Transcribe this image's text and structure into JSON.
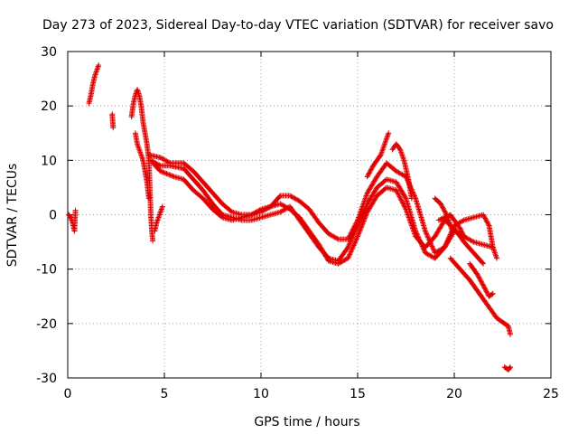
{
  "chart_data": {
    "type": "scatter",
    "title": "Day 273 of 2023, Sidereal Day-to-day VTEC variation (SDTVAR) for receiver savo",
    "xlabel": "GPS time / hours",
    "ylabel": "SDTVAR / TECUs",
    "xlim": [
      0,
      25
    ],
    "ylim": [
      -30,
      30
    ],
    "x_ticks": [
      "0",
      "5",
      "10",
      "15",
      "20",
      "25"
    ],
    "y_ticks": [
      "30",
      "20",
      "10",
      "0",
      "-10",
      "-20",
      "-30"
    ],
    "x_tick_values": [
      0,
      5,
      10,
      15,
      20,
      25
    ],
    "y_tick_values": [
      30,
      20,
      10,
      0,
      -10,
      -20,
      -30
    ],
    "grid": true,
    "marker": "+",
    "color": "#e00000",
    "series": [
      {
        "name": "t1",
        "points": [
          [
            0.05,
            0
          ],
          [
            0.15,
            -0.5
          ],
          [
            0.25,
            -1.5
          ],
          [
            0.35,
            -3
          ],
          [
            0.4,
            0.8
          ]
        ]
      },
      {
        "name": "t2",
        "points": [
          [
            1.1,
            20.5
          ],
          [
            1.2,
            22
          ],
          [
            1.3,
            24
          ],
          [
            1.4,
            25.5
          ],
          [
            1.5,
            26.5
          ],
          [
            1.6,
            27.5
          ]
        ]
      },
      {
        "name": "t3",
        "points": [
          [
            2.3,
            18.5
          ],
          [
            2.35,
            16
          ]
        ]
      },
      {
        "name": "t4",
        "points": [
          [
            3.3,
            18
          ],
          [
            3.4,
            20.5
          ],
          [
            3.5,
            22
          ],
          [
            3.6,
            23
          ],
          [
            3.7,
            22
          ],
          [
            3.8,
            20
          ],
          [
            3.9,
            17
          ],
          [
            4.0,
            15
          ],
          [
            4.1,
            13
          ],
          [
            4.2,
            10
          ],
          [
            4.25,
            5
          ],
          [
            4.3,
            0
          ],
          [
            4.35,
            -3
          ],
          [
            4.4,
            -4.8
          ]
        ]
      },
      {
        "name": "t5",
        "points": [
          [
            3.5,
            15
          ],
          [
            3.6,
            13
          ],
          [
            3.7,
            12
          ],
          [
            3.8,
            11
          ],
          [
            3.9,
            10
          ],
          [
            4.0,
            8
          ],
          [
            4.1,
            6
          ],
          [
            4.2,
            3
          ]
        ]
      },
      {
        "name": "t6",
        "points": [
          [
            4.5,
            -3
          ],
          [
            4.6,
            -1.5
          ],
          [
            4.7,
            -0.5
          ],
          [
            4.8,
            0.5
          ],
          [
            4.9,
            1.5
          ]
        ]
      },
      {
        "name": "t7",
        "points": [
          [
            4.2,
            11
          ],
          [
            4.8,
            10.5
          ],
          [
            5.3,
            9.5
          ],
          [
            6,
            9.5
          ],
          [
            6.5,
            8
          ],
          [
            7,
            6
          ],
          [
            7.5,
            4
          ],
          [
            8,
            2
          ],
          [
            8.5,
            0.5
          ],
          [
            9,
            0
          ],
          [
            9.5,
            0
          ],
          [
            10,
            0.5
          ],
          [
            10.5,
            1.5
          ],
          [
            11,
            3.5
          ],
          [
            11.5,
            3.5
          ],
          [
            12,
            2.5
          ],
          [
            12.5,
            1
          ],
          [
            13,
            -1.5
          ],
          [
            13.5,
            -3.5
          ],
          [
            14,
            -4.5
          ],
          [
            14.5,
            -4.5
          ],
          [
            15,
            -1
          ],
          [
            15.5,
            4
          ],
          [
            16,
            7
          ],
          [
            16.5,
            9.5
          ],
          [
            17,
            8
          ],
          [
            17.5,
            7
          ],
          [
            18,
            3
          ],
          [
            18.5,
            -3
          ],
          [
            19,
            -7
          ],
          [
            19.5,
            -6
          ],
          [
            20,
            -2
          ],
          [
            20.5,
            -1
          ],
          [
            21,
            -0.5
          ],
          [
            21.5,
            0
          ],
          [
            21.8,
            -2
          ],
          [
            22,
            -6
          ],
          [
            22.2,
            -8
          ]
        ]
      },
      {
        "name": "t8",
        "points": [
          [
            4.3,
            10
          ],
          [
            4.8,
            9
          ],
          [
            5.3,
            9
          ],
          [
            6,
            8.5
          ],
          [
            6.5,
            6.5
          ],
          [
            7,
            4.5
          ],
          [
            7.5,
            2
          ],
          [
            8,
            0
          ],
          [
            8.5,
            -0.5
          ],
          [
            9,
            -1
          ],
          [
            9.5,
            -1
          ],
          [
            10,
            -0.5
          ],
          [
            10.5,
            0
          ],
          [
            11,
            0.5
          ],
          [
            11.5,
            1.5
          ],
          [
            12,
            -1
          ],
          [
            12.5,
            -3.5
          ],
          [
            13,
            -6
          ],
          [
            13.5,
            -8
          ],
          [
            14,
            -8.5
          ],
          [
            14.5,
            -6
          ],
          [
            15,
            -2
          ],
          [
            15.5,
            2
          ],
          [
            16,
            5
          ],
          [
            16.5,
            6.5
          ],
          [
            17,
            6
          ],
          [
            17.5,
            3
          ],
          [
            18,
            -3
          ],
          [
            18.5,
            -7
          ],
          [
            19,
            -8
          ],
          [
            19.5,
            -6
          ],
          [
            20,
            -3
          ],
          [
            20.5,
            -4
          ],
          [
            21,
            -5
          ],
          [
            21.5,
            -5.5
          ],
          [
            22,
            -6
          ]
        ]
      },
      {
        "name": "t9",
        "points": [
          [
            4.4,
            9.5
          ],
          [
            4.8,
            8
          ],
          [
            5.5,
            7
          ],
          [
            6,
            6.5
          ],
          [
            6.5,
            4.5
          ],
          [
            7,
            3
          ],
          [
            7.5,
            1
          ],
          [
            8,
            -0.5
          ],
          [
            8.5,
            -1
          ],
          [
            9,
            -0.5
          ],
          [
            9.5,
            0
          ],
          [
            10,
            1
          ],
          [
            10.5,
            1.5
          ],
          [
            11,
            2
          ],
          [
            11.5,
            1
          ],
          [
            12,
            -0.5
          ],
          [
            12.5,
            -3
          ],
          [
            13,
            -5.5
          ],
          [
            13.5,
            -8.5
          ],
          [
            14,
            -9
          ],
          [
            14.5,
            -8
          ],
          [
            15,
            -4
          ],
          [
            15.5,
            0.5
          ],
          [
            16,
            3.5
          ],
          [
            16.5,
            5
          ],
          [
            17,
            4.5
          ],
          [
            17.5,
            1
          ],
          [
            18,
            -4
          ],
          [
            18.5,
            -6
          ],
          [
            19,
            -4
          ],
          [
            19.5,
            -1
          ],
          [
            20,
            -2.5
          ],
          [
            20.5,
            -5
          ],
          [
            21,
            -7
          ],
          [
            21.5,
            -9
          ]
        ]
      },
      {
        "name": "t10",
        "points": [
          [
            15.5,
            7
          ],
          [
            15.8,
            9
          ],
          [
            16.2,
            11
          ],
          [
            16.5,
            14
          ],
          [
            16.6,
            15
          ]
        ]
      },
      {
        "name": "t11",
        "points": [
          [
            16.8,
            12
          ],
          [
            17,
            13
          ],
          [
            17.2,
            12
          ],
          [
            17.4,
            10
          ],
          [
            17.6,
            7
          ],
          [
            17.8,
            3
          ]
        ]
      },
      {
        "name": "t12",
        "points": [
          [
            19.2,
            -1
          ],
          [
            19.5,
            -0.5
          ],
          [
            19.8,
            0
          ],
          [
            20,
            -1
          ],
          [
            20.3,
            -2.5
          ],
          [
            20.5,
            -4
          ]
        ]
      },
      {
        "name": "t13",
        "points": [
          [
            19,
            3
          ],
          [
            19.3,
            2
          ],
          [
            19.6,
            0
          ],
          [
            19.9,
            -3
          ]
        ]
      },
      {
        "name": "t14",
        "points": [
          [
            19.8,
            -8
          ],
          [
            20.3,
            -10
          ],
          [
            20.8,
            -12
          ],
          [
            21.2,
            -14
          ],
          [
            21.6,
            -16
          ],
          [
            21.9,
            -17.5
          ],
          [
            22.2,
            -19
          ],
          [
            22.6,
            -20
          ],
          [
            22.8,
            -20.5
          ],
          [
            22.9,
            -22
          ]
        ]
      },
      {
        "name": "t15",
        "points": [
          [
            20.8,
            -9
          ],
          [
            21.2,
            -11
          ],
          [
            21.5,
            -13
          ],
          [
            21.8,
            -15
          ],
          [
            22.0,
            -14.5
          ]
        ]
      },
      {
        "name": "t16",
        "points": [
          [
            22.6,
            -28
          ],
          [
            22.8,
            -28.5
          ],
          [
            22.9,
            -28
          ]
        ]
      }
    ]
  }
}
